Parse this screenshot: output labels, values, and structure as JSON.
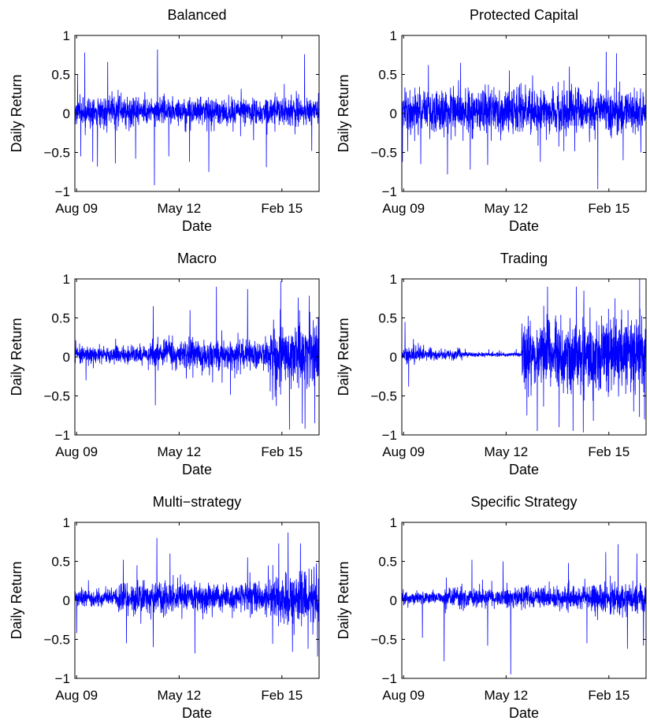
{
  "figure": {
    "background": "#ffffff",
    "line_color": "#0000ff",
    "axes_color": "#000000"
  },
  "chart_data": [
    {
      "type": "line",
      "title": "Balanced",
      "xlabel": "Date",
      "ylabel": "Daily Return",
      "ylim": [
        -1,
        1
      ],
      "yticks": [
        -1,
        -0.5,
        0,
        0.5,
        1
      ],
      "ytick_labels": [
        "−1",
        "−0.5",
        "0",
        "0.5",
        "1"
      ],
      "xticks": [
        "2009-08-01",
        "2012-05-01",
        "2015-02-01"
      ],
      "xtick_labels": [
        "Aug 09",
        "May 12",
        "Feb 15"
      ],
      "xlim": [
        "2009-07-15",
        "2016-01-31"
      ],
      "series": [
        {
          "baseline_amplitude": 0.16,
          "regimes": [
            {
              "from": "2009-07-15",
              "to": "2016-01-31",
              "amplitude": 0.16
            }
          ],
          "spikes": [
            {
              "date": "2009-08-10",
              "value": 0.5
            },
            {
              "date": "2009-09-10",
              "value": -0.55
            },
            {
              "date": "2009-10-20",
              "value": 0.78
            },
            {
              "date": "2010-01-05",
              "value": -0.62
            },
            {
              "date": "2010-02-20",
              "value": -0.68
            },
            {
              "date": "2010-06-01",
              "value": 0.66
            },
            {
              "date": "2010-08-15",
              "value": -0.64
            },
            {
              "date": "2011-03-01",
              "value": -0.58
            },
            {
              "date": "2011-09-01",
              "value": -0.92
            },
            {
              "date": "2011-10-01",
              "value": 0.82
            },
            {
              "date": "2012-01-20",
              "value": -0.55
            },
            {
              "date": "2012-08-10",
              "value": -0.62
            },
            {
              "date": "2013-02-15",
              "value": -0.75
            },
            {
              "date": "2014-09-01",
              "value": -0.69
            },
            {
              "date": "2015-09-10",
              "value": 0.76
            },
            {
              "date": "2015-11-20",
              "value": -0.48
            }
          ]
        }
      ]
    },
    {
      "type": "line",
      "title": "Protected Capital",
      "xlabel": "Date",
      "ylabel": "Daily Return",
      "ylim": [
        -1,
        1
      ],
      "yticks": [
        -1,
        -0.5,
        0,
        0.5,
        1
      ],
      "ytick_labels": [
        "−1",
        "−0.5",
        "0",
        "0.5",
        "1"
      ],
      "xticks": [
        "2009-08-01",
        "2012-05-01",
        "2015-02-01"
      ],
      "xtick_labels": [
        "Aug 09",
        "May 12",
        "Feb 15"
      ],
      "xlim": [
        "2009-07-15",
        "2016-01-31"
      ],
      "series": [
        {
          "baseline_amplitude": 0.24,
          "regimes": [
            {
              "from": "2009-07-15",
              "to": "2016-01-31",
              "amplitude": 0.24
            }
          ],
          "spikes": [
            {
              "date": "2009-07-20",
              "value": -0.62
            },
            {
              "date": "2010-01-15",
              "value": -0.65
            },
            {
              "date": "2010-04-01",
              "value": 0.62
            },
            {
              "date": "2010-10-05",
              "value": -0.78
            },
            {
              "date": "2011-02-10",
              "value": 0.65
            },
            {
              "date": "2011-05-15",
              "value": -0.72
            },
            {
              "date": "2011-11-01",
              "value": -0.66
            },
            {
              "date": "2012-06-01",
              "value": 0.55
            },
            {
              "date": "2013-04-01",
              "value": -0.62
            },
            {
              "date": "2014-01-10",
              "value": 0.6
            },
            {
              "date": "2014-10-15",
              "value": -0.97
            },
            {
              "date": "2015-01-05",
              "value": 0.79
            },
            {
              "date": "2015-04-15",
              "value": 0.77
            },
            {
              "date": "2015-06-20",
              "value": -0.6
            },
            {
              "date": "2015-12-10",
              "value": -0.5
            }
          ]
        }
      ]
    },
    {
      "type": "line",
      "title": "Macro",
      "xlabel": "Date",
      "ylabel": "Daily Return",
      "ylim": [
        -1,
        1
      ],
      "yticks": [
        -1,
        -0.5,
        0,
        0.5,
        1
      ],
      "ytick_labels": [
        "−1",
        "−0.5",
        "0",
        "0.5",
        "1"
      ],
      "xticks": [
        "2009-08-01",
        "2012-05-01",
        "2015-02-01"
      ],
      "xtick_labels": [
        "Aug 09",
        "May 12",
        "Feb 15"
      ],
      "xlim": [
        "2009-07-15",
        "2016-01-31"
      ],
      "series": [
        {
          "baseline_amplitude": 0.1,
          "regimes": [
            {
              "from": "2009-07-15",
              "to": "2011-08-01",
              "amplitude": 0.1
            },
            {
              "from": "2011-08-01",
              "to": "2014-10-01",
              "amplitude": 0.17
            },
            {
              "from": "2014-10-01",
              "to": "2016-01-31",
              "amplitude": 0.34
            }
          ],
          "spikes": [
            {
              "date": "2009-11-01",
              "value": -0.3
            },
            {
              "date": "2011-08-20",
              "value": 0.65
            },
            {
              "date": "2011-09-10",
              "value": -0.62
            },
            {
              "date": "2012-08-15",
              "value": 0.6
            },
            {
              "date": "2013-05-01",
              "value": 0.9
            },
            {
              "date": "2014-03-01",
              "value": 0.87
            },
            {
              "date": "2014-11-01",
              "value": -0.55
            },
            {
              "date": "2015-01-20",
              "value": 0.97
            },
            {
              "date": "2015-04-15",
              "value": -0.93
            },
            {
              "date": "2015-07-10",
              "value": 0.76
            },
            {
              "date": "2015-09-15",
              "value": -0.92
            },
            {
              "date": "2015-12-20",
              "value": -0.85
            }
          ]
        }
      ]
    },
    {
      "type": "line",
      "title": "Trading",
      "xlabel": "Date",
      "ylabel": "Daily Return",
      "ylim": [
        -1,
        1
      ],
      "yticks": [
        -1,
        -0.5,
        0,
        0.5,
        1
      ],
      "ytick_labels": [
        "−1",
        "−0.5",
        "0",
        "0.5",
        "1"
      ],
      "xticks": [
        "2009-08-01",
        "2012-05-01",
        "2015-02-01"
      ],
      "xtick_labels": [
        "Aug 09",
        "May 12",
        "Feb 15"
      ],
      "xlim": [
        "2009-07-15",
        "2016-01-31"
      ],
      "series": [
        {
          "baseline_amplitude": 0.08,
          "regimes": [
            {
              "from": "2009-07-15",
              "to": "2010-03-01",
              "amplitude": 0.1
            },
            {
              "from": "2010-03-01",
              "to": "2011-03-01",
              "amplitude": 0.06
            },
            {
              "from": "2011-03-01",
              "to": "2012-10-01",
              "amplitude": 0.025
            },
            {
              "from": "2012-10-01",
              "to": "2016-01-31",
              "amplitude": 0.38
            }
          ],
          "spikes": [
            {
              "date": "2009-08-15",
              "value": 0.45
            },
            {
              "date": "2009-09-20",
              "value": -0.38
            },
            {
              "date": "2012-11-20",
              "value": -0.75
            },
            {
              "date": "2013-03-01",
              "value": -0.95
            },
            {
              "date": "2013-06-10",
              "value": 0.9
            },
            {
              "date": "2013-10-01",
              "value": -0.9
            },
            {
              "date": "2014-02-15",
              "value": -0.95
            },
            {
              "date": "2014-03-20",
              "value": 0.9
            },
            {
              "date": "2014-06-01",
              "value": 0.85
            },
            {
              "date": "2014-09-01",
              "value": -0.82
            },
            {
              "date": "2015-04-01",
              "value": 0.75
            },
            {
              "date": "2015-10-01",
              "value": -0.7
            },
            {
              "date": "2016-01-15",
              "value": -0.8
            }
          ]
        }
      ]
    },
    {
      "type": "line",
      "title": "Multi−strategy",
      "xlabel": "Date",
      "ylabel": "Daily Return",
      "ylim": [
        -1,
        1
      ],
      "yticks": [
        -1,
        -0.5,
        0,
        0.5,
        1
      ],
      "ytick_labels": [
        "−1",
        "−0.5",
        "0",
        "0.5",
        "1"
      ],
      "xticks": [
        "2009-08-01",
        "2012-05-01",
        "2015-02-01"
      ],
      "xtick_labels": [
        "Aug 09",
        "May 12",
        "Feb 15"
      ],
      "xlim": [
        "2009-07-15",
        "2016-01-31"
      ],
      "series": [
        {
          "baseline_amplitude": 0.1,
          "regimes": [
            {
              "from": "2009-07-15",
              "to": "2010-09-01",
              "amplitude": 0.09
            },
            {
              "from": "2010-09-01",
              "to": "2014-10-01",
              "amplitude": 0.17
            },
            {
              "from": "2014-10-01",
              "to": "2016-01-31",
              "amplitude": 0.26
            }
          ],
          "spikes": [
            {
              "date": "2009-08-01",
              "value": -0.42
            },
            {
              "date": "2010-11-01",
              "value": 0.52
            },
            {
              "date": "2010-12-01",
              "value": -0.55
            },
            {
              "date": "2011-03-15",
              "value": 0.45
            },
            {
              "date": "2011-08-20",
              "value": -0.6
            },
            {
              "date": "2011-09-25",
              "value": 0.8
            },
            {
              "date": "2012-02-01",
              "value": 0.6
            },
            {
              "date": "2012-10-01",
              "value": -0.68
            },
            {
              "date": "2014-03-01",
              "value": 0.55
            },
            {
              "date": "2015-01-01",
              "value": 0.73
            },
            {
              "date": "2015-04-01",
              "value": 0.87
            },
            {
              "date": "2015-05-15",
              "value": -0.66
            },
            {
              "date": "2015-08-01",
              "value": 0.73
            },
            {
              "date": "2015-10-15",
              "value": -0.62
            },
            {
              "date": "2016-01-15",
              "value": -0.72
            }
          ]
        }
      ]
    },
    {
      "type": "line",
      "title": "Specific Strategy",
      "xlabel": "Date",
      "ylabel": "Daily Return",
      "ylim": [
        -1,
        1
      ],
      "yticks": [
        -1,
        -0.5,
        0,
        0.5,
        1
      ],
      "ytick_labels": [
        "−1",
        "−0.5",
        "0",
        "0.5",
        "1"
      ],
      "xticks": [
        "2009-08-01",
        "2012-05-01",
        "2015-02-01"
      ],
      "xtick_labels": [
        "Aug 09",
        "May 12",
        "Feb 15"
      ],
      "xlim": [
        "2009-07-15",
        "2016-01-31"
      ],
      "series": [
        {
          "baseline_amplitude": 0.09,
          "regimes": [
            {
              "from": "2009-07-15",
              "to": "2010-09-01",
              "amplitude": 0.07
            },
            {
              "from": "2010-09-01",
              "to": "2014-09-01",
              "amplitude": 0.12
            },
            {
              "from": "2014-09-01",
              "to": "2016-01-31",
              "amplitude": 0.18
            }
          ],
          "spikes": [
            {
              "date": "2010-02-01",
              "value": -0.48
            },
            {
              "date": "2010-09-01",
              "value": -0.78
            },
            {
              "date": "2011-06-01",
              "value": 0.52
            },
            {
              "date": "2011-11-01",
              "value": -0.58
            },
            {
              "date": "2012-04-01",
              "value": 0.5
            },
            {
              "date": "2012-06-15",
              "value": -0.95
            },
            {
              "date": "2014-01-01",
              "value": 0.48
            },
            {
              "date": "2014-07-01",
              "value": -0.55
            },
            {
              "date": "2015-01-01",
              "value": 0.62
            },
            {
              "date": "2015-05-01",
              "value": 0.72
            },
            {
              "date": "2015-08-01",
              "value": -0.62
            },
            {
              "date": "2015-11-01",
              "value": 0.6
            },
            {
              "date": "2016-01-05",
              "value": -0.58
            }
          ]
        }
      ]
    }
  ]
}
